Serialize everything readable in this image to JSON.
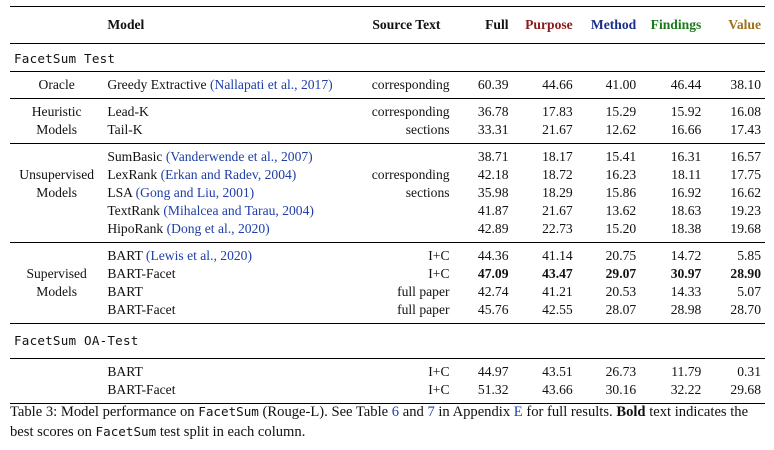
{
  "header": {
    "model": "Model",
    "source": "Source Text",
    "full": "Full",
    "purpose": "Purpose",
    "method": "Method",
    "findings": "Findings",
    "value": "Value"
  },
  "colors": {
    "purpose": "#8b1a1a",
    "method": "#1a2e8b",
    "findings": "#1a7a1a",
    "value": "#a0701a",
    "citation": "#1f3ea8"
  },
  "sections": {
    "test": "FacetSum Test",
    "oa_test": "FacetSum OA-Test"
  },
  "groups": {
    "oracle": "Oracle",
    "heuristic": [
      "Heuristic",
      "Models"
    ],
    "unsupervised": [
      "Unsupervised",
      "Models"
    ],
    "supervised": [
      "Supervised",
      "Models"
    ]
  },
  "sources": {
    "oracle": "corresponding",
    "heuristic": [
      "corresponding",
      "sections"
    ],
    "unsupervised": [
      "corresponding",
      "sections"
    ]
  },
  "rows": {
    "oracle": {
      "model": "Greedy Extractive",
      "cite": "(Nallapati et al., 2017)",
      "full": "60.39",
      "purpose": "44.66",
      "method": "41.00",
      "findings": "46.44",
      "value": "38.10"
    },
    "leadk": {
      "model": "Lead-K",
      "full": "36.78",
      "purpose": "17.83",
      "method": "15.29",
      "findings": "15.92",
      "value": "16.08"
    },
    "tailk": {
      "model": "Tail-K",
      "full": "33.31",
      "purpose": "21.67",
      "method": "12.62",
      "findings": "16.66",
      "value": "17.43"
    },
    "sumbasic": {
      "model": "SumBasic",
      "cite": "(Vanderwende et al., 2007)",
      "full": "38.71",
      "purpose": "18.17",
      "method": "15.41",
      "findings": "16.31",
      "value": "16.57"
    },
    "lexrank": {
      "model": "LexRank",
      "cite": "(Erkan and Radev, 2004)",
      "full": "42.18",
      "purpose": "18.72",
      "method": "16.23",
      "findings": "18.11",
      "value": "17.75"
    },
    "lsa": {
      "model": "LSA",
      "cite": "(Gong and Liu, 2001)",
      "full": "35.98",
      "purpose": "18.29",
      "method": "15.86",
      "findings": "16.92",
      "value": "16.62"
    },
    "textrank": {
      "model": "TextRank",
      "cite": "(Mihalcea and Tarau, 2004)",
      "full": "41.87",
      "purpose": "21.67",
      "method": "13.62",
      "findings": "18.63",
      "value": "19.23"
    },
    "hiporank": {
      "model": "HipoRank",
      "cite": "(Dong et al., 2020)",
      "full": "42.89",
      "purpose": "22.73",
      "method": "15.20",
      "findings": "18.38",
      "value": "19.68"
    },
    "bart_ic": {
      "model": "BART",
      "cite": "(Lewis et al., 2020)",
      "source": "I+C",
      "full": "44.36",
      "purpose": "41.14",
      "method": "20.75",
      "findings": "14.72",
      "value": "5.85"
    },
    "bartfacet_ic": {
      "model": "BART-Facet",
      "source": "I+C",
      "full": "47.09",
      "purpose": "43.47",
      "method": "29.07",
      "findings": "30.97",
      "value": "28.90"
    },
    "bart_fp": {
      "model": "BART",
      "source": "full paper",
      "full": "42.74",
      "purpose": "41.21",
      "method": "20.53",
      "findings": "14.33",
      "value": "5.07"
    },
    "bartfacet_fp": {
      "model": "BART-Facet",
      "source": "full paper",
      "full": "45.76",
      "purpose": "42.55",
      "method": "28.07",
      "findings": "28.98",
      "value": "28.70"
    },
    "oa_bart": {
      "model": "BART",
      "source": "I+C",
      "full": "44.97",
      "purpose": "43.51",
      "method": "26.73",
      "findings": "11.79",
      "value": "0.31"
    },
    "oa_bartfacet": {
      "model": "BART-Facet",
      "source": "I+C",
      "full": "51.32",
      "purpose": "43.66",
      "method": "30.16",
      "findings": "32.22",
      "value": "29.68"
    }
  },
  "caption": {
    "p1": "Table 3: Model performance on ",
    "facetsum1": "FacetSum",
    "p2": " (Rouge-L). See Table ",
    "ref6": "6",
    "p3": " and ",
    "ref7": "7",
    "p4": " in Appendix ",
    "refE": "E",
    "p5": " for full results. ",
    "bold": "Bold",
    "p6": " text indicates the best scores on ",
    "facetsum2": "FacetSum",
    "p7": " test split in each column."
  }
}
